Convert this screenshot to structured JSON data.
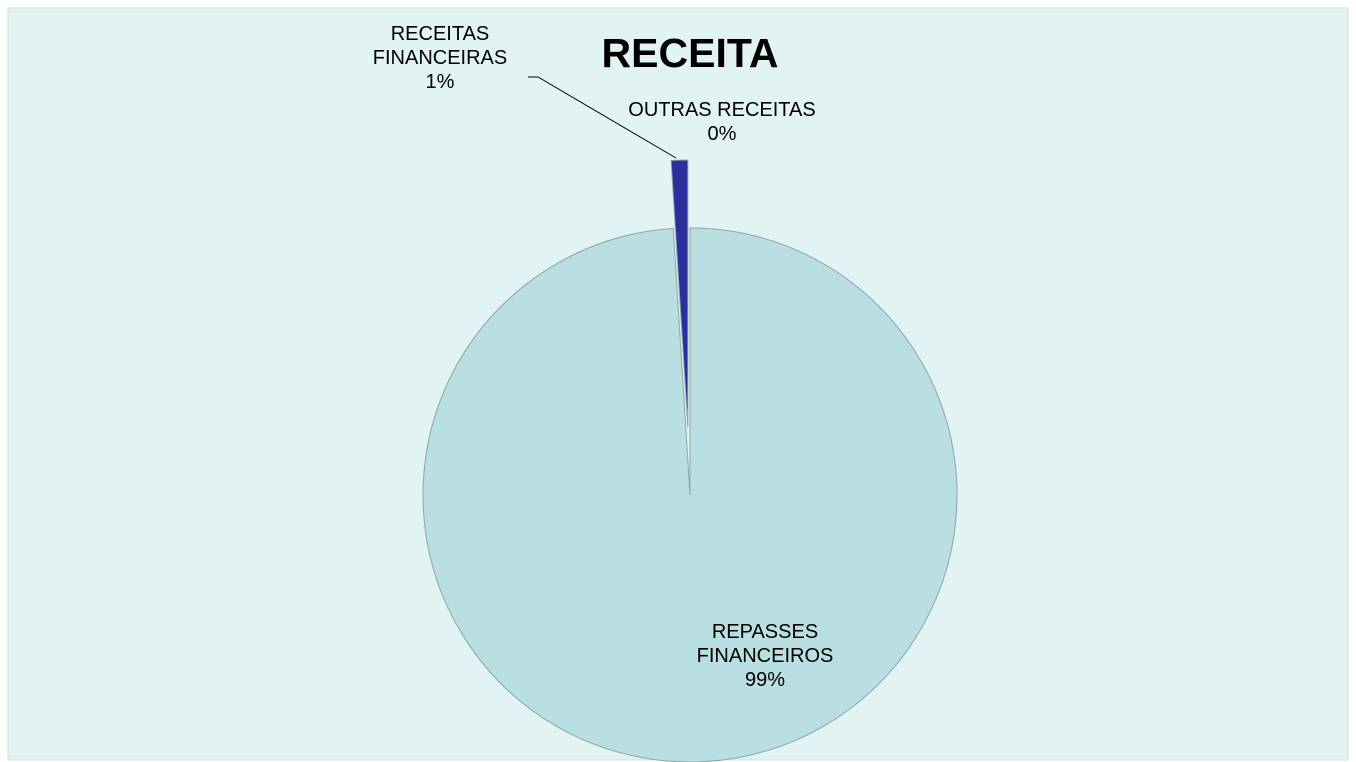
{
  "chart_data": {
    "type": "pie",
    "title": "RECEITA",
    "categories": [
      "REPASSES FINANCEIROS",
      "RECEITAS FINANCEIRAS",
      "OUTRAS RECEITAS"
    ],
    "values": [
      99,
      1,
      0
    ],
    "value_labels": [
      "99%",
      "1%",
      "0%"
    ],
    "colors": [
      "#b9dfe3",
      "#2b2f9b",
      "#f4fbfb"
    ]
  }
}
